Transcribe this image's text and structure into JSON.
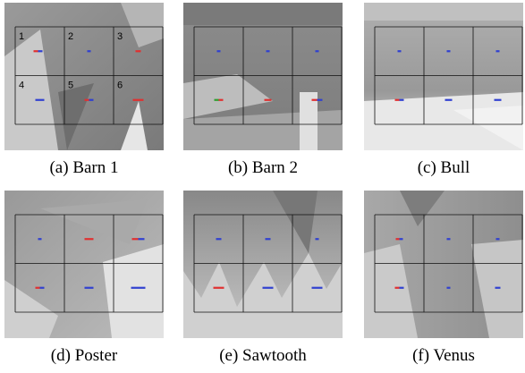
{
  "panels": [
    {
      "caption": "(a) Barn 1",
      "cell_labels": [
        "1",
        "2",
        "3",
        "4",
        "5",
        "6"
      ]
    },
    {
      "caption": "(b) Barn 2"
    },
    {
      "caption": "(c) Bull"
    },
    {
      "caption": "(d) Poster"
    },
    {
      "caption": "(e) Sawtooth"
    },
    {
      "caption": "(f) Venus"
    }
  ]
}
